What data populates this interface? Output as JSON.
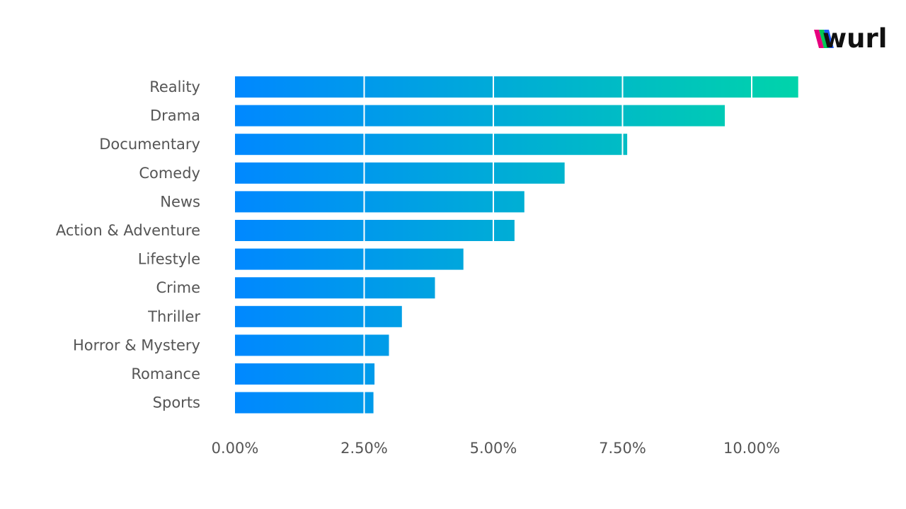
{
  "logo": {
    "text": "wurl",
    "accent_colors": [
      "#e6007e",
      "#00c853",
      "#1e5bff"
    ]
  },
  "chart_data": {
    "type": "bar",
    "orientation": "horizontal",
    "categories": [
      "Reality",
      "Drama",
      "Documentary",
      "Comedy",
      "News",
      "Action & Adventure",
      "Lifestyle",
      "Crime",
      "Thriller",
      "Horror & Mystery",
      "Romance",
      "Sports"
    ],
    "values": [
      10.9,
      9.48,
      7.59,
      6.38,
      5.6,
      5.41,
      4.42,
      3.87,
      3.23,
      2.98,
      2.7,
      2.68
    ],
    "value_unit": "%",
    "xlim": [
      0,
      12.5
    ],
    "xticks": [
      0,
      2.5,
      5,
      7.5,
      10
    ],
    "xtick_labels": [
      "0.00%",
      "2.50%",
      "5.00%",
      "7.50%",
      "10.00%"
    ],
    "title": "",
    "xlabel": "",
    "ylabel": "",
    "grid": "vertical lines at ticks, drawn over bars in white",
    "legend": "none",
    "bar_gradient": [
      "#0088ff",
      "#00d4aa"
    ]
  }
}
